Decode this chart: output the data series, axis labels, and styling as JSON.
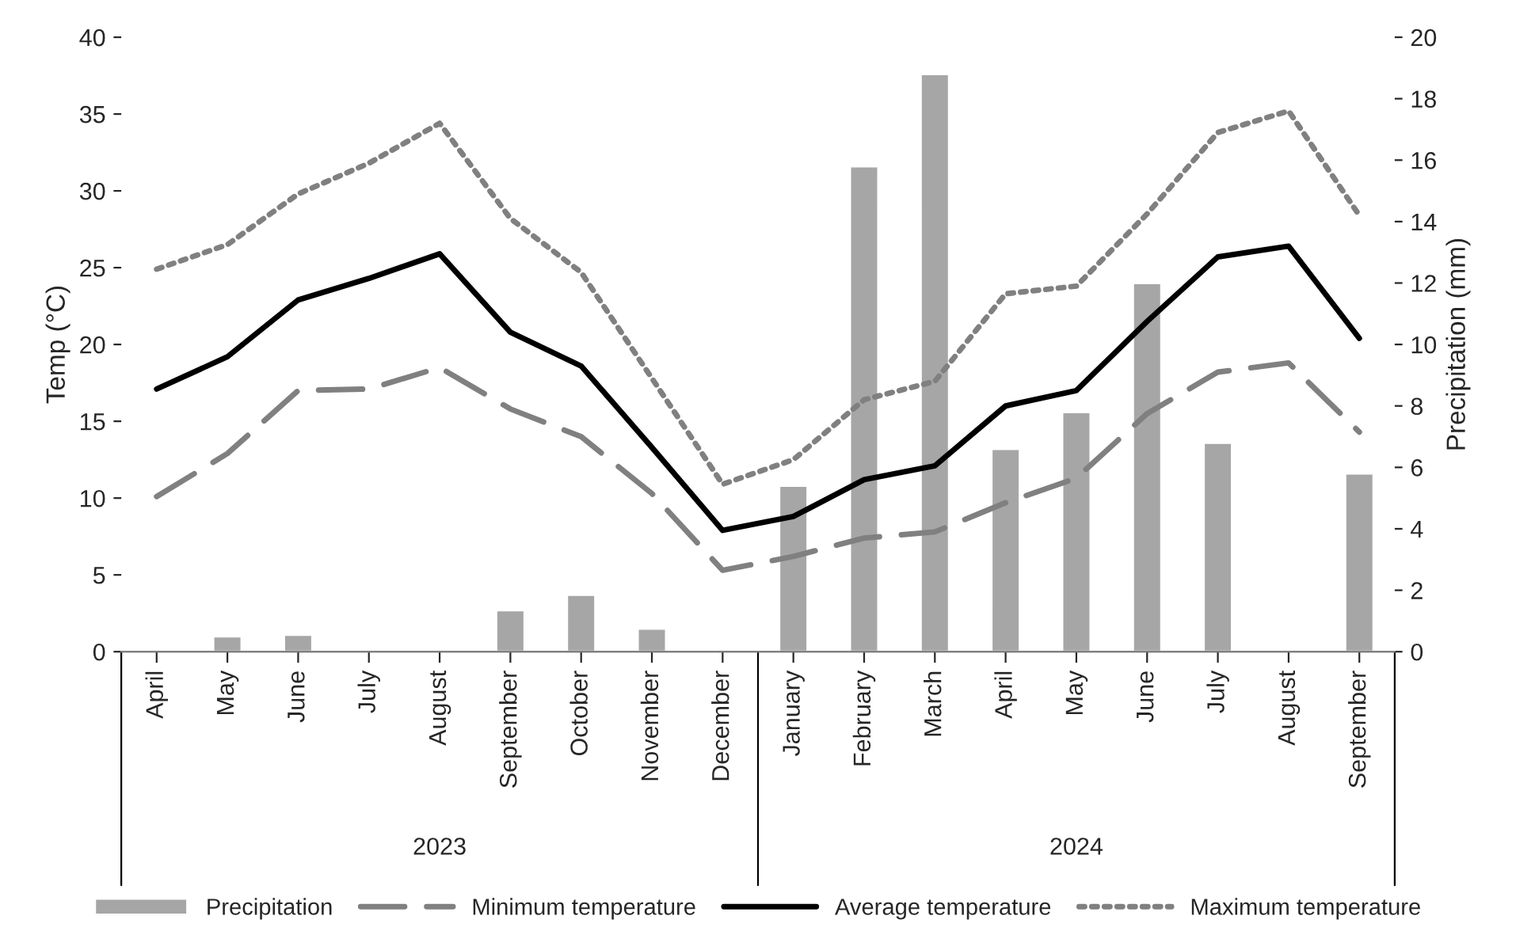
{
  "chart_data": {
    "type": "line",
    "categories": [
      "April",
      "May",
      "June",
      "July",
      "August",
      "September",
      "October",
      "November",
      "December",
      "January",
      "February",
      "March",
      "April",
      "May",
      "June",
      "July",
      "August",
      "September"
    ],
    "ylabel": "Temp (°C)",
    "y2label": "Precipitation (mm)",
    "ylim": [
      0,
      40
    ],
    "yticks": [
      0,
      5,
      10,
      15,
      20,
      25,
      30,
      35,
      40
    ],
    "y2lim": [
      0,
      20
    ],
    "y2ticks": [
      0,
      2,
      4,
      6,
      8,
      10,
      12,
      14,
      16,
      18,
      20
    ],
    "legend": "bottom",
    "grid": false,
    "annotations": [
      "2023",
      "2024"
    ],
    "series": [
      {
        "name": "Precipitation",
        "type": "bar",
        "axis": "y2",
        "color": "#a6a6a6",
        "values": [
          0.05,
          0.5,
          0.55,
          null,
          null,
          1.35,
          1.85,
          0.75,
          null,
          5.4,
          15.8,
          18.8,
          6.6,
          7.8,
          12.0,
          6.8,
          null,
          5.8
        ]
      },
      {
        "name": "Minimum temperature",
        "color": "#808080",
        "line_style": "dashed",
        "values": [
          10.1,
          12.9,
          17.0,
          17.1,
          18.5,
          15.8,
          14.0,
          10.3,
          5.3,
          6.2,
          7.4,
          7.8,
          9.7,
          11.3,
          15.5,
          18.2,
          18.8,
          14.3
        ]
      },
      {
        "name": "Average temperature",
        "color": "#000000",
        "line_style": "solid",
        "values": [
          17.1,
          19.2,
          22.9,
          24.3,
          25.9,
          20.8,
          18.6,
          13.3,
          7.9,
          8.8,
          11.2,
          12.1,
          16.0,
          17.0,
          21.5,
          25.7,
          26.4,
          20.4
        ]
      },
      {
        "name": "Maximum temperature",
        "color": "#808080",
        "line_style": "dotted",
        "values": [
          24.9,
          26.5,
          29.8,
          31.8,
          34.4,
          28.2,
          24.7,
          17.8,
          10.9,
          12.5,
          16.4,
          17.6,
          23.3,
          23.8,
          28.5,
          33.8,
          35.2,
          28.4
        ]
      }
    ]
  }
}
